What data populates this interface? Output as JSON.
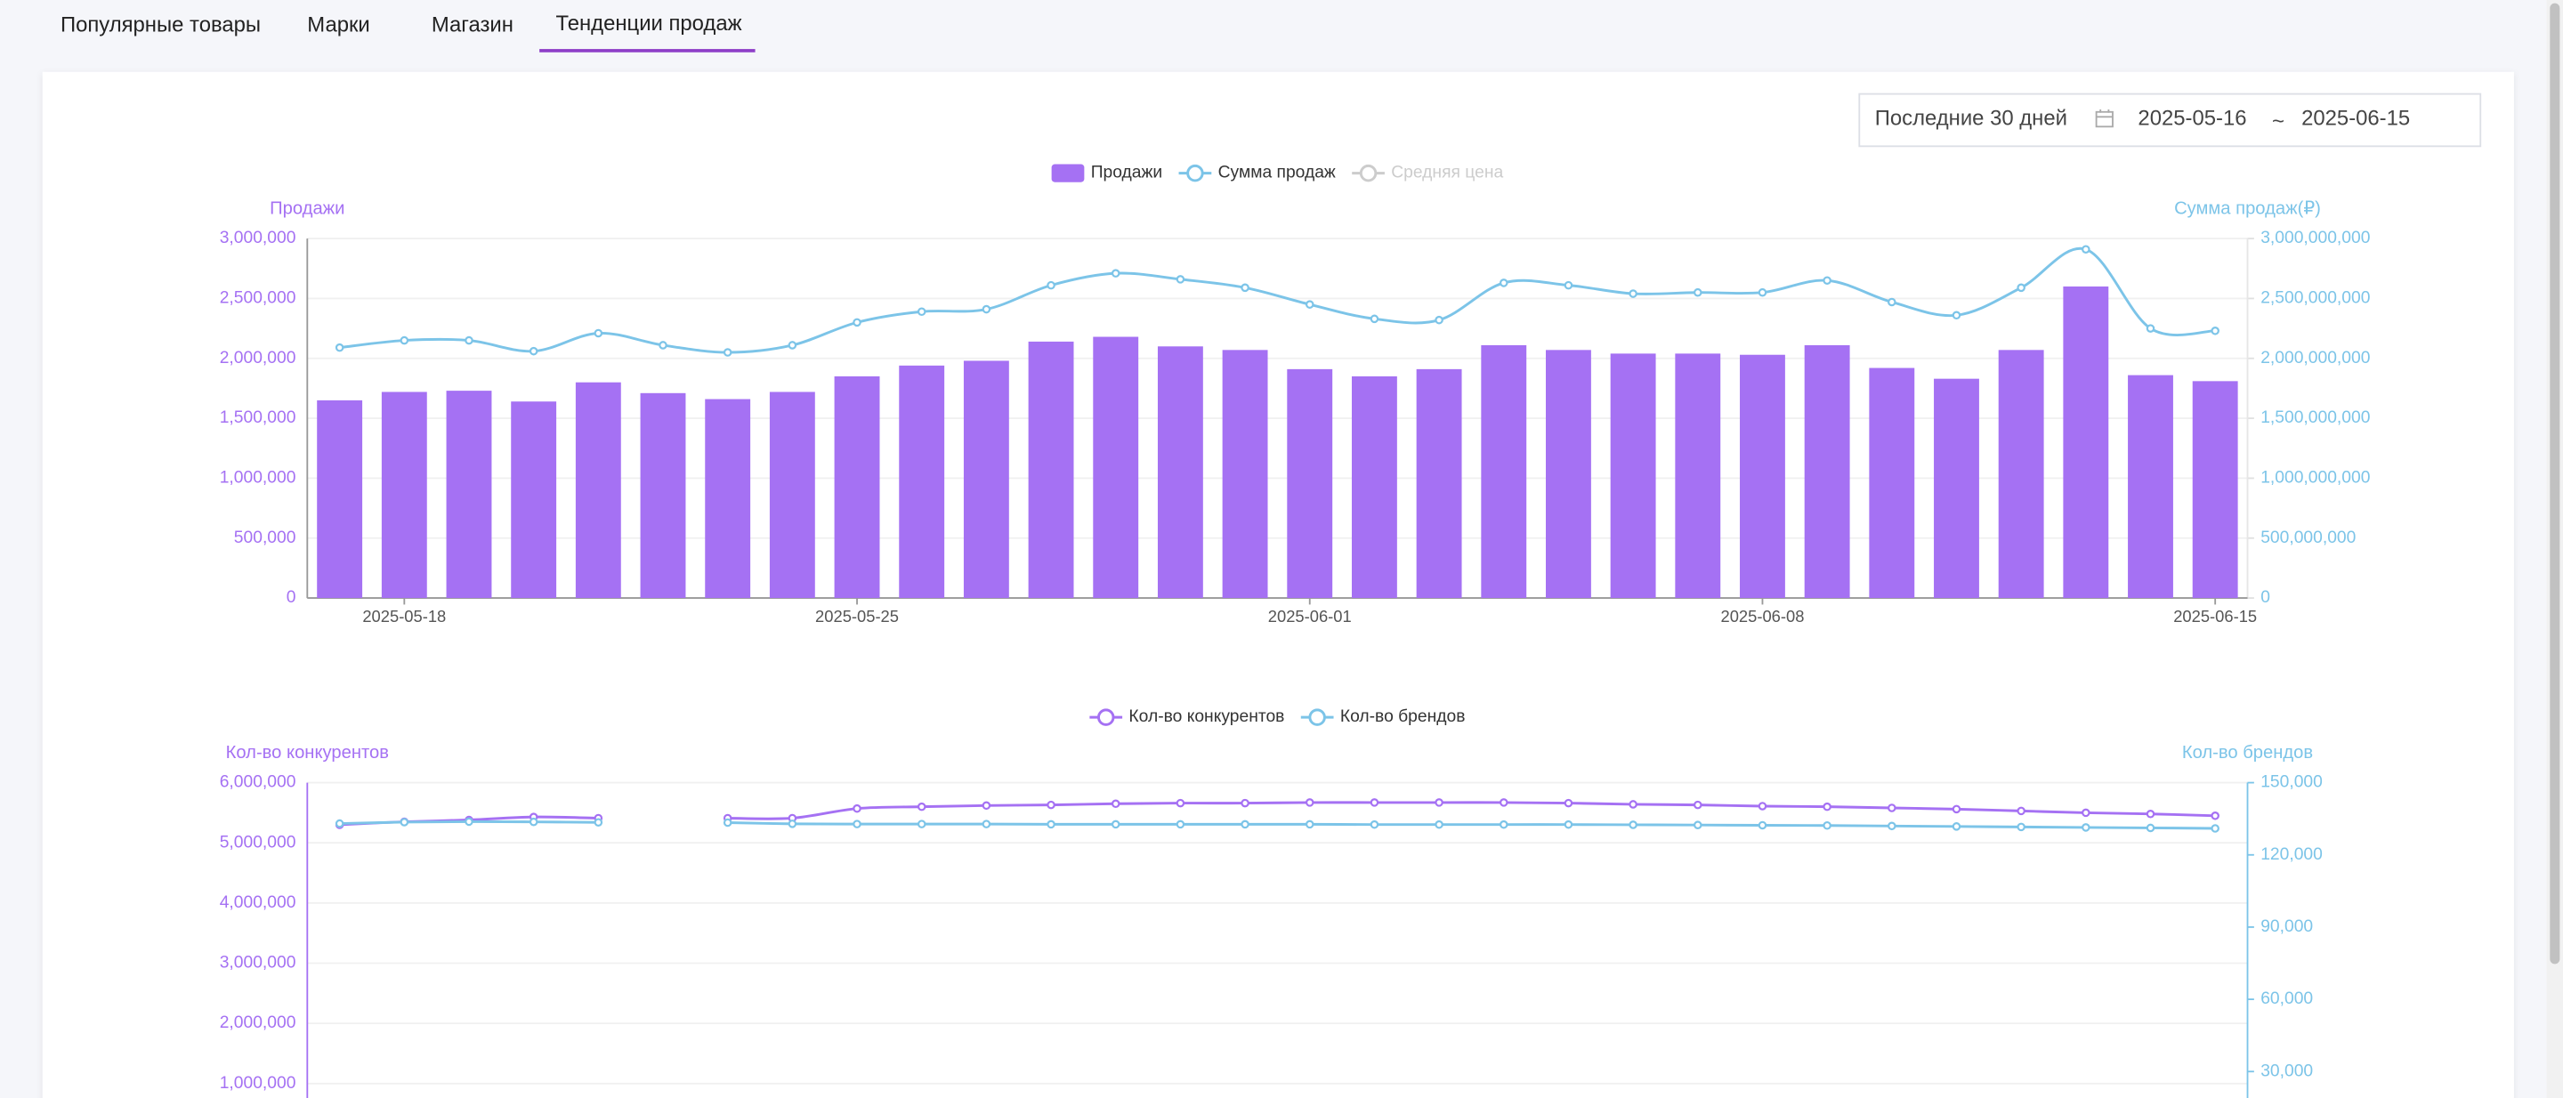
{
  "tabs": [
    "Популярные товары",
    "Марки",
    "Магазин",
    "Тенденции продаж"
  ],
  "active_tab": 3,
  "date_range": {
    "preset": "Последние 30 дней",
    "start": "2025-05-16",
    "separator": "~",
    "end": "2025-06-15"
  },
  "chart_data": [
    {
      "type": "combo",
      "categories": [
        null,
        "2025-05-18",
        null,
        null,
        null,
        null,
        null,
        null,
        "2025-05-25",
        null,
        null,
        null,
        null,
        null,
        null,
        "2025-06-01",
        null,
        null,
        null,
        null,
        null,
        null,
        "2025-06-08",
        null,
        null,
        null,
        null,
        null,
        null,
        "2025-06-15"
      ],
      "ylabel": "Продажи",
      "y2label": "Сумма продаж(₽)",
      "ylim": [
        0,
        3000000
      ],
      "yticks": [
        0,
        {
          "value": 500000,
          "label": "500,000"
        },
        {
          "value": 1000000,
          "label": "1,000,000"
        },
        {
          "value": 1500000,
          "label": "1,500,000"
        },
        {
          "value": 2000000,
          "label": "2,000,000"
        },
        {
          "value": 2500000,
          "label": "2,500,000"
        },
        {
          "value": 3000000,
          "label": "3,000,000"
        }
      ],
      "y2lim": [
        0,
        3000000000
      ],
      "y2ticks": [
        0,
        {
          "value": 500000000,
          "label": "500,000,000"
        },
        {
          "value": 1000000000,
          "label": "1,000,000,000"
        },
        {
          "value": 1500000000,
          "label": "1,500,000,000"
        },
        {
          "value": 2000000000,
          "label": "2,000,000,000"
        },
        {
          "value": 2500000000,
          "label": "2,500,000,000"
        },
        {
          "value": 3000000000,
          "label": "3,000,000,000"
        }
      ],
      "grid": true,
      "series": [
        {
          "name": "Продажи",
          "type": "bar",
          "color": "#a571f3",
          "values": [
            1650000,
            1720000,
            1730000,
            1640000,
            1800000,
            1710000,
            1660000,
            1720000,
            1850000,
            1940000,
            1980000,
            2140000,
            2180000,
            2100000,
            2070000,
            1910000,
            1850000,
            1910000,
            2110000,
            2070000,
            2040000,
            2040000,
            2030000,
            2110000,
            1920000,
            1830000,
            2070000,
            2600000,
            1860000,
            1810000
          ]
        },
        {
          "name": "Сумма продаж",
          "type": "line",
          "axis": "y2",
          "color": "#7cc4e8",
          "values": [
            2090000000,
            2150000000,
            2150000000,
            2060000000,
            2210000000,
            2110000000,
            2050000000,
            2110000000,
            2300000000,
            2390000000,
            2410000000,
            2610000000,
            2710000000,
            2660000000,
            2590000000,
            2450000000,
            2330000000,
            2320000000,
            2630000000,
            2610000000,
            2540000000,
            2550000000,
            2550000000,
            2650000000,
            2470000000,
            2360000000,
            2590000000,
            2910000000,
            2250000000,
            2230000000
          ]
        },
        {
          "name": "Средняя цена",
          "type": "line",
          "color": "#cccccc",
          "visible": false
        }
      ]
    },
    {
      "type": "line",
      "ylabel": "Кол-во конкурентов",
      "y2label": "Кол-во брендов",
      "ylim": [
        0,
        6000000
      ],
      "yticks": [
        {
          "value": 1000000,
          "label": "1,000,000"
        },
        {
          "value": 2000000,
          "label": "2,000,000"
        },
        {
          "value": 3000000,
          "label": "3,000,000"
        },
        {
          "value": 4000000,
          "label": "4,000,000"
        },
        {
          "value": 5000000,
          "label": "5,000,000"
        },
        {
          "value": 6000000,
          "label": "6,000,000"
        }
      ],
      "y2lim": [
        0,
        150000
      ],
      "y2ticks": [
        {
          "value": 30000,
          "label": "30,000"
        },
        {
          "value": 60000,
          "label": "60,000"
        },
        {
          "value": 90000,
          "label": "90,000"
        },
        {
          "value": 120000,
          "label": "120,000"
        },
        {
          "value": 150000,
          "label": "150,000"
        }
      ],
      "grid": true,
      "series": [
        {
          "name": "Кол-во конкурентов",
          "type": "line",
          "color": "#a571f3",
          "values": [
            5300000,
            5350000,
            5380000,
            5430000,
            5410000,
            null,
            5410000,
            5410000,
            5570000,
            5600000,
            5620000,
            5630000,
            5650000,
            5660000,
            5660000,
            5670000,
            5670000,
            5670000,
            5670000,
            5660000,
            5640000,
            5630000,
            5610000,
            5600000,
            5580000,
            5560000,
            5530000,
            5500000,
            5480000,
            5450000
          ]
        },
        {
          "name": "Кол-во брендов",
          "type": "line",
          "axis": "y2",
          "color": "#7cc4e8",
          "values": [
            133000,
            133600,
            133800,
            133700,
            133500,
            null,
            133400,
            132900,
            132800,
            132800,
            132800,
            132700,
            132700,
            132700,
            132700,
            132700,
            132600,
            132600,
            132600,
            132600,
            132500,
            132400,
            132300,
            132200,
            132000,
            131800,
            131600,
            131400,
            131200,
            131000
          ]
        }
      ]
    }
  ]
}
